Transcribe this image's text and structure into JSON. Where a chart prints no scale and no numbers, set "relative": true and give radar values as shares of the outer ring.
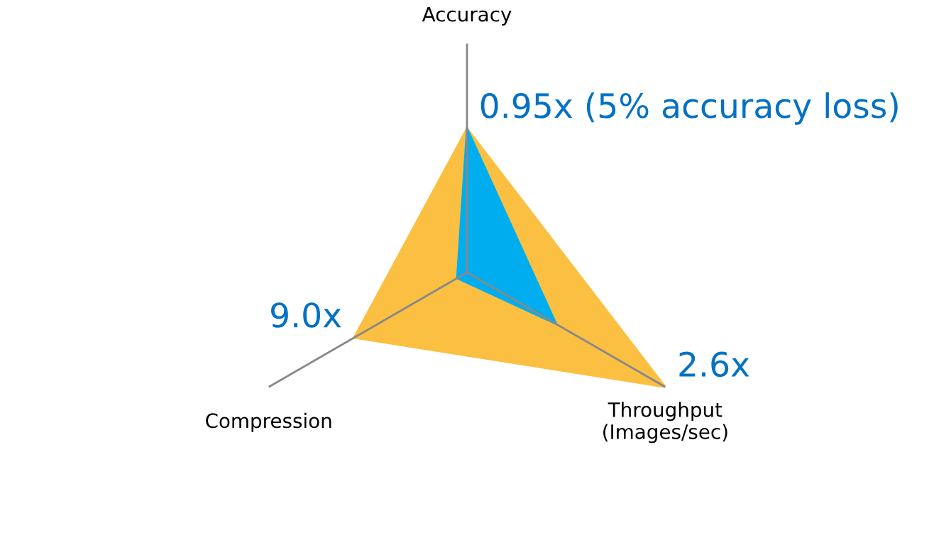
{
  "chart_data": {
    "type": "radar",
    "relative": true,
    "categories": [
      "Accuracy",
      "Throughput\n(Images/sec)",
      "Compression"
    ],
    "series": [
      {
        "color": "#fbc041",
        "values": [
          0.63,
          1.0,
          0.57
        ]
      },
      {
        "color": "#00aeef",
        "values": [
          0.63,
          0.45,
          0.05
        ]
      }
    ],
    "annotations": [
      "0.95x (5% accuracy loss)",
      "2.6x",
      "9.0x"
    ]
  }
}
